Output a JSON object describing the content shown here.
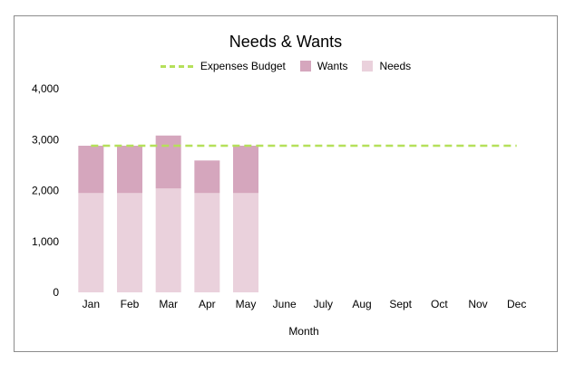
{
  "chart_data": {
    "type": "bar",
    "title": "Needs & Wants",
    "xlabel": "Month",
    "ylabel": "",
    "ylim": [
      0,
      4000
    ],
    "yticks": [
      "0",
      "1,000",
      "2,000",
      "3,000",
      "4,000"
    ],
    "ytick_values": [
      0,
      1000,
      2000,
      3000,
      4000
    ],
    "categories": [
      "Jan",
      "Feb",
      "Mar",
      "Apr",
      "May",
      "June",
      "July",
      "Aug",
      "Sept",
      "Oct",
      "Nov",
      "Dec"
    ],
    "stacked": true,
    "grid": false,
    "legend_position": "top",
    "series": [
      {
        "name": "Needs",
        "kind": "bar",
        "color": "#ead1dc",
        "values": [
          1950,
          1950,
          2040,
          1950,
          1950,
          null,
          null,
          null,
          null,
          null,
          null,
          null
        ]
      },
      {
        "name": "Wants",
        "kind": "bar",
        "color": "#d5a6bd",
        "values": [
          930,
          930,
          1040,
          640,
          930,
          null,
          null,
          null,
          null,
          null,
          null,
          null
        ]
      },
      {
        "name": "Expenses Budget",
        "kind": "line",
        "style": "dashed",
        "color": "#b5e05a",
        "values": [
          2880,
          2880,
          2880,
          2880,
          2880,
          2880,
          2880,
          2880,
          2880,
          2880,
          2880,
          2880
        ]
      }
    ],
    "legend_order": [
      "Expenses Budget",
      "Wants",
      "Needs"
    ]
  }
}
